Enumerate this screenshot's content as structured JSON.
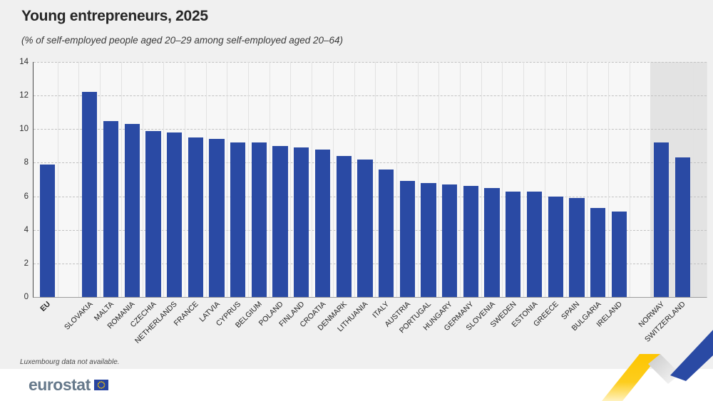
{
  "header": {
    "title": "Young entrepreneurs, 2025",
    "subtitle": "(% of self-employed people aged 20–29 among self-employed aged 20–64)"
  },
  "footnote": "Luxembourg data not available.",
  "logo": {
    "text": "eurostat"
  },
  "colors": {
    "bar": "#2a4aa4",
    "efta_band": "#e3e3e3",
    "plot_background": "#f7f7f7",
    "page_background": "#f0f0f0",
    "ribbon_yellow": "#fdc500",
    "ribbon_blue": "#2a4aa4",
    "logo_text": "#66798b",
    "flag_blue": "#2743a0",
    "flag_stars": "#ffcc00"
  },
  "chart_data": {
    "type": "bar",
    "title": "Young entrepreneurs, 2025",
    "subtitle": "(% of self-employed people aged 20–29 among self-employed aged 20–64)",
    "xlabel": "",
    "ylabel": "",
    "ylim": [
      0,
      14
    ],
    "yticks": [
      0,
      2,
      4,
      6,
      8,
      10,
      12,
      14
    ],
    "grid": "horizontal-dashed",
    "legend": "none",
    "categories": [
      "EU",
      "SLOVAKIA",
      "MALTA",
      "ROMANIA",
      "CZECHIA",
      "NETHERLANDS",
      "FRANCE",
      "LATVIA",
      "CYPRUS",
      "BELGIUM",
      "POLAND",
      "FINLAND",
      "CROATIA",
      "DENMARK",
      "LITHUANIA",
      "ITALY",
      "AUSTRIA",
      "PORTUGAL",
      "HUNGARY",
      "GERMANY",
      "SLOVENIA",
      "SWEDEN",
      "ESTONIA",
      "GREECE",
      "SPAIN",
      "BULGARIA",
      "IRELAND",
      "NORWAY",
      "SWITZERLAND"
    ],
    "values": [
      7.9,
      12.2,
      10.5,
      10.3,
      9.9,
      9.8,
      9.5,
      9.4,
      9.2,
      9.2,
      9.0,
      8.9,
      8.8,
      8.4,
      8.2,
      7.6,
      6.9,
      6.8,
      6.7,
      6.6,
      6.5,
      6.3,
      6.3,
      6.0,
      5.9,
      5.3,
      5.1,
      9.2,
      8.3
    ],
    "bold_categories": [
      "EU"
    ],
    "spacer_after": [
      "EU",
      "IRELAND"
    ],
    "shaded_categories": [
      "NORWAY",
      "SWITZERLAND"
    ]
  }
}
